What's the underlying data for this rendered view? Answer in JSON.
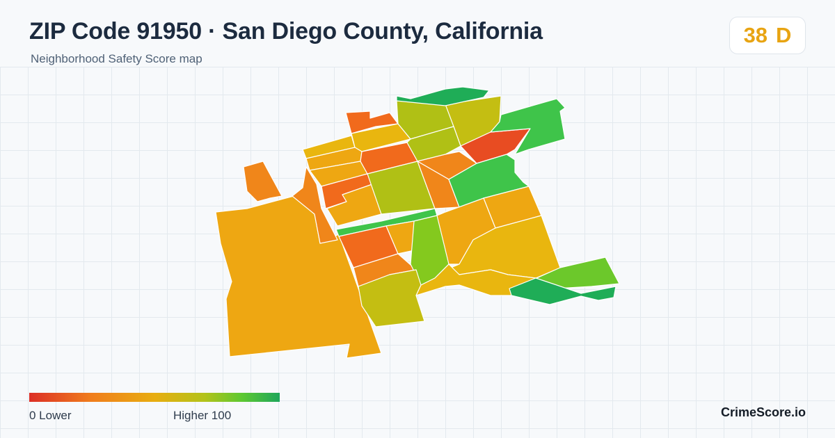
{
  "header": {
    "title": "ZIP Code 91950 · San Diego County, California",
    "subtitle": "Neighborhood Safety Score map"
  },
  "score_badge": {
    "score": "38",
    "grade": "D",
    "color": "#e8a412"
  },
  "legend": {
    "low_label": "0  Lower",
    "high_label": "Higher  100",
    "gradient_colors": [
      "#dc2f26",
      "#f07e1c",
      "#e8ad10",
      "#b3c31a",
      "#5dc832",
      "#1ea65a"
    ]
  },
  "brand": {
    "name": "CrimeScore.io"
  },
  "map": {
    "region_colors": {
      "red": "#e84c22",
      "red_orange": "#f16a1c",
      "orange": "#f0861a",
      "amber": "#eea712",
      "gold": "#e9b60f",
      "yellow_green": "#c4be12",
      "olive": "#b0c015",
      "lime": "#84c91e",
      "light_green": "#6cc82b",
      "green": "#3fc44a",
      "dark_green": "#1fad57"
    }
  }
}
